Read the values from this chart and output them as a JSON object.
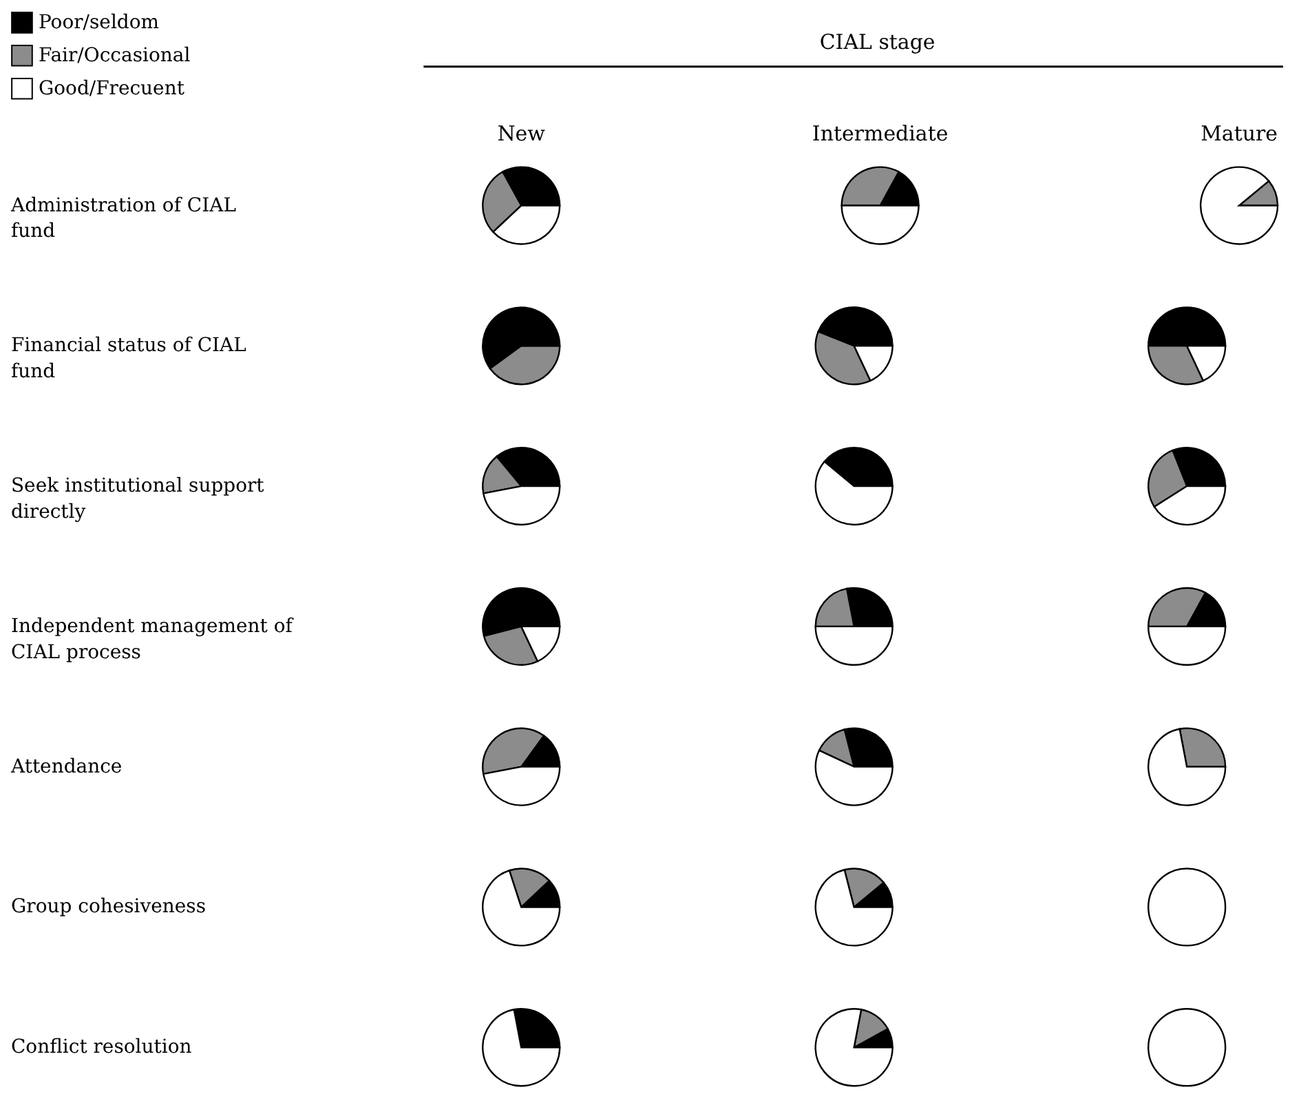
{
  "chart_data": [
    {
      "type": "other",
      "title": "CIAL stage"
    },
    {
      "type": "pie",
      "title": "New",
      "ylabel": "Administration of CIAL fund",
      "legend": "top left",
      "categories": [
        "Poor/seldom",
        "Fair/Occasional",
        "Good/Frecuent"
      ],
      "values": [
        33,
        29,
        38
      ],
      "colors": [
        "#000000",
        "#8c8c8c",
        "#ffffff"
      ]
    },
    {
      "type": "pie",
      "title": "Intermediate",
      "categories": [
        null,
        null,
        null
      ],
      "values": [
        17,
        33,
        50
      ],
      "colors": [
        "#000000",
        "#8c8c8c",
        "#ffffff"
      ]
    },
    {
      "type": "pie",
      "title": "Mature",
      "categories": [
        null,
        null,
        null
      ],
      "values": [
        0,
        11,
        89
      ],
      "colors": [
        "#000000",
        "#8c8c8c",
        "#ffffff"
      ]
    },
    {
      "type": "pie",
      "ylabel": "Financial status of CIAL fund",
      "categories": [
        null,
        null,
        null
      ],
      "values": [
        60,
        40,
        0
      ],
      "colors": [
        "#000000",
        "#8c8c8c",
        "#ffffff"
      ]
    },
    {
      "type": "pie",
      "categories": [
        null,
        null,
        null
      ],
      "values": [
        44,
        38,
        18
      ],
      "colors": [
        "#000000",
        "#8c8c8c",
        "#ffffff"
      ]
    },
    {
      "type": "pie",
      "categories": [
        null,
        null,
        null
      ],
      "values": [
        50,
        32,
        18
      ],
      "colors": [
        "#000000",
        "#8c8c8c",
        "#ffffff"
      ]
    },
    {
      "type": "pie",
      "ylabel": "Seek institutional support directly",
      "categories": [
        null,
        null,
        null
      ],
      "values": [
        36,
        17,
        47
      ],
      "colors": [
        "#000000",
        "#8c8c8c",
        "#ffffff"
      ]
    },
    {
      "type": "pie",
      "categories": [
        null,
        null,
        null
      ],
      "values": [
        39,
        0,
        61
      ],
      "colors": [
        "#000000",
        "#8c8c8c",
        "#ffffff"
      ]
    },
    {
      "type": "pie",
      "categories": [
        null,
        null,
        null
      ],
      "values": [
        31,
        28,
        41
      ],
      "colors": [
        "#000000",
        "#8c8c8c",
        "#ffffff"
      ]
    },
    {
      "type": "pie",
      "ylabel": "Independent management of CIAL process",
      "categories": [
        null,
        null,
        null
      ],
      "values": [
        54,
        28,
        18
      ],
      "colors": [
        "#000000",
        "#8c8c8c",
        "#ffffff"
      ]
    },
    {
      "type": "pie",
      "categories": [
        null,
        null,
        null
      ],
      "values": [
        28,
        22,
        50
      ],
      "colors": [
        "#000000",
        "#8c8c8c",
        "#ffffff"
      ]
    },
    {
      "type": "pie",
      "categories": [
        null,
        null,
        null
      ],
      "values": [
        17,
        33,
        50
      ],
      "colors": [
        "#000000",
        "#8c8c8c",
        "#ffffff"
      ]
    },
    {
      "type": "pie",
      "ylabel": "Attendance",
      "categories": [
        null,
        null,
        null
      ],
      "values": [
        15,
        38,
        47
      ],
      "colors": [
        "#000000",
        "#8c8c8c",
        "#ffffff"
      ]
    },
    {
      "type": "pie",
      "categories": [
        null,
        null,
        null
      ],
      "values": [
        29,
        14,
        57
      ],
      "colors": [
        "#000000",
        "#8c8c8c",
        "#ffffff"
      ]
    },
    {
      "type": "pie",
      "categories": [
        null,
        null,
        null
      ],
      "values": [
        0,
        28,
        72
      ],
      "colors": [
        "#000000",
        "#8c8c8c",
        "#ffffff"
      ]
    },
    {
      "type": "pie",
      "ylabel": "Group cohesiveness",
      "categories": [
        null,
        null,
        null
      ],
      "values": [
        12,
        18,
        70
      ],
      "colors": [
        "#000000",
        "#8c8c8c",
        "#ffffff"
      ]
    },
    {
      "type": "pie",
      "categories": [
        null,
        null,
        null
      ],
      "values": [
        11,
        18,
        71
      ],
      "colors": [
        "#000000",
        "#8c8c8c",
        "#ffffff"
      ]
    },
    {
      "type": "pie",
      "categories": [
        null,
        null,
        null
      ],
      "values": [
        0,
        0,
        100
      ],
      "colors": [
        "#000000",
        "#8c8c8c",
        "#ffffff"
      ]
    },
    {
      "type": "pie",
      "ylabel": "Conflict resolution",
      "categories": [
        null,
        null,
        null
      ],
      "values": [
        28,
        0,
        72
      ],
      "colors": [
        "#000000",
        "#8c8c8c",
        "#ffffff"
      ]
    },
    {
      "type": "pie",
      "categories": [
        null,
        null,
        null
      ],
      "values": [
        8,
        14,
        78
      ],
      "colors": [
        "#000000",
        "#8c8c8c",
        "#ffffff"
      ]
    },
    {
      "type": "pie",
      "categories": [
        null,
        null,
        null
      ],
      "values": [
        0,
        0,
        100
      ],
      "colors": [
        "#000000",
        "#8c8c8c",
        "#ffffff"
      ]
    }
  ]
}
